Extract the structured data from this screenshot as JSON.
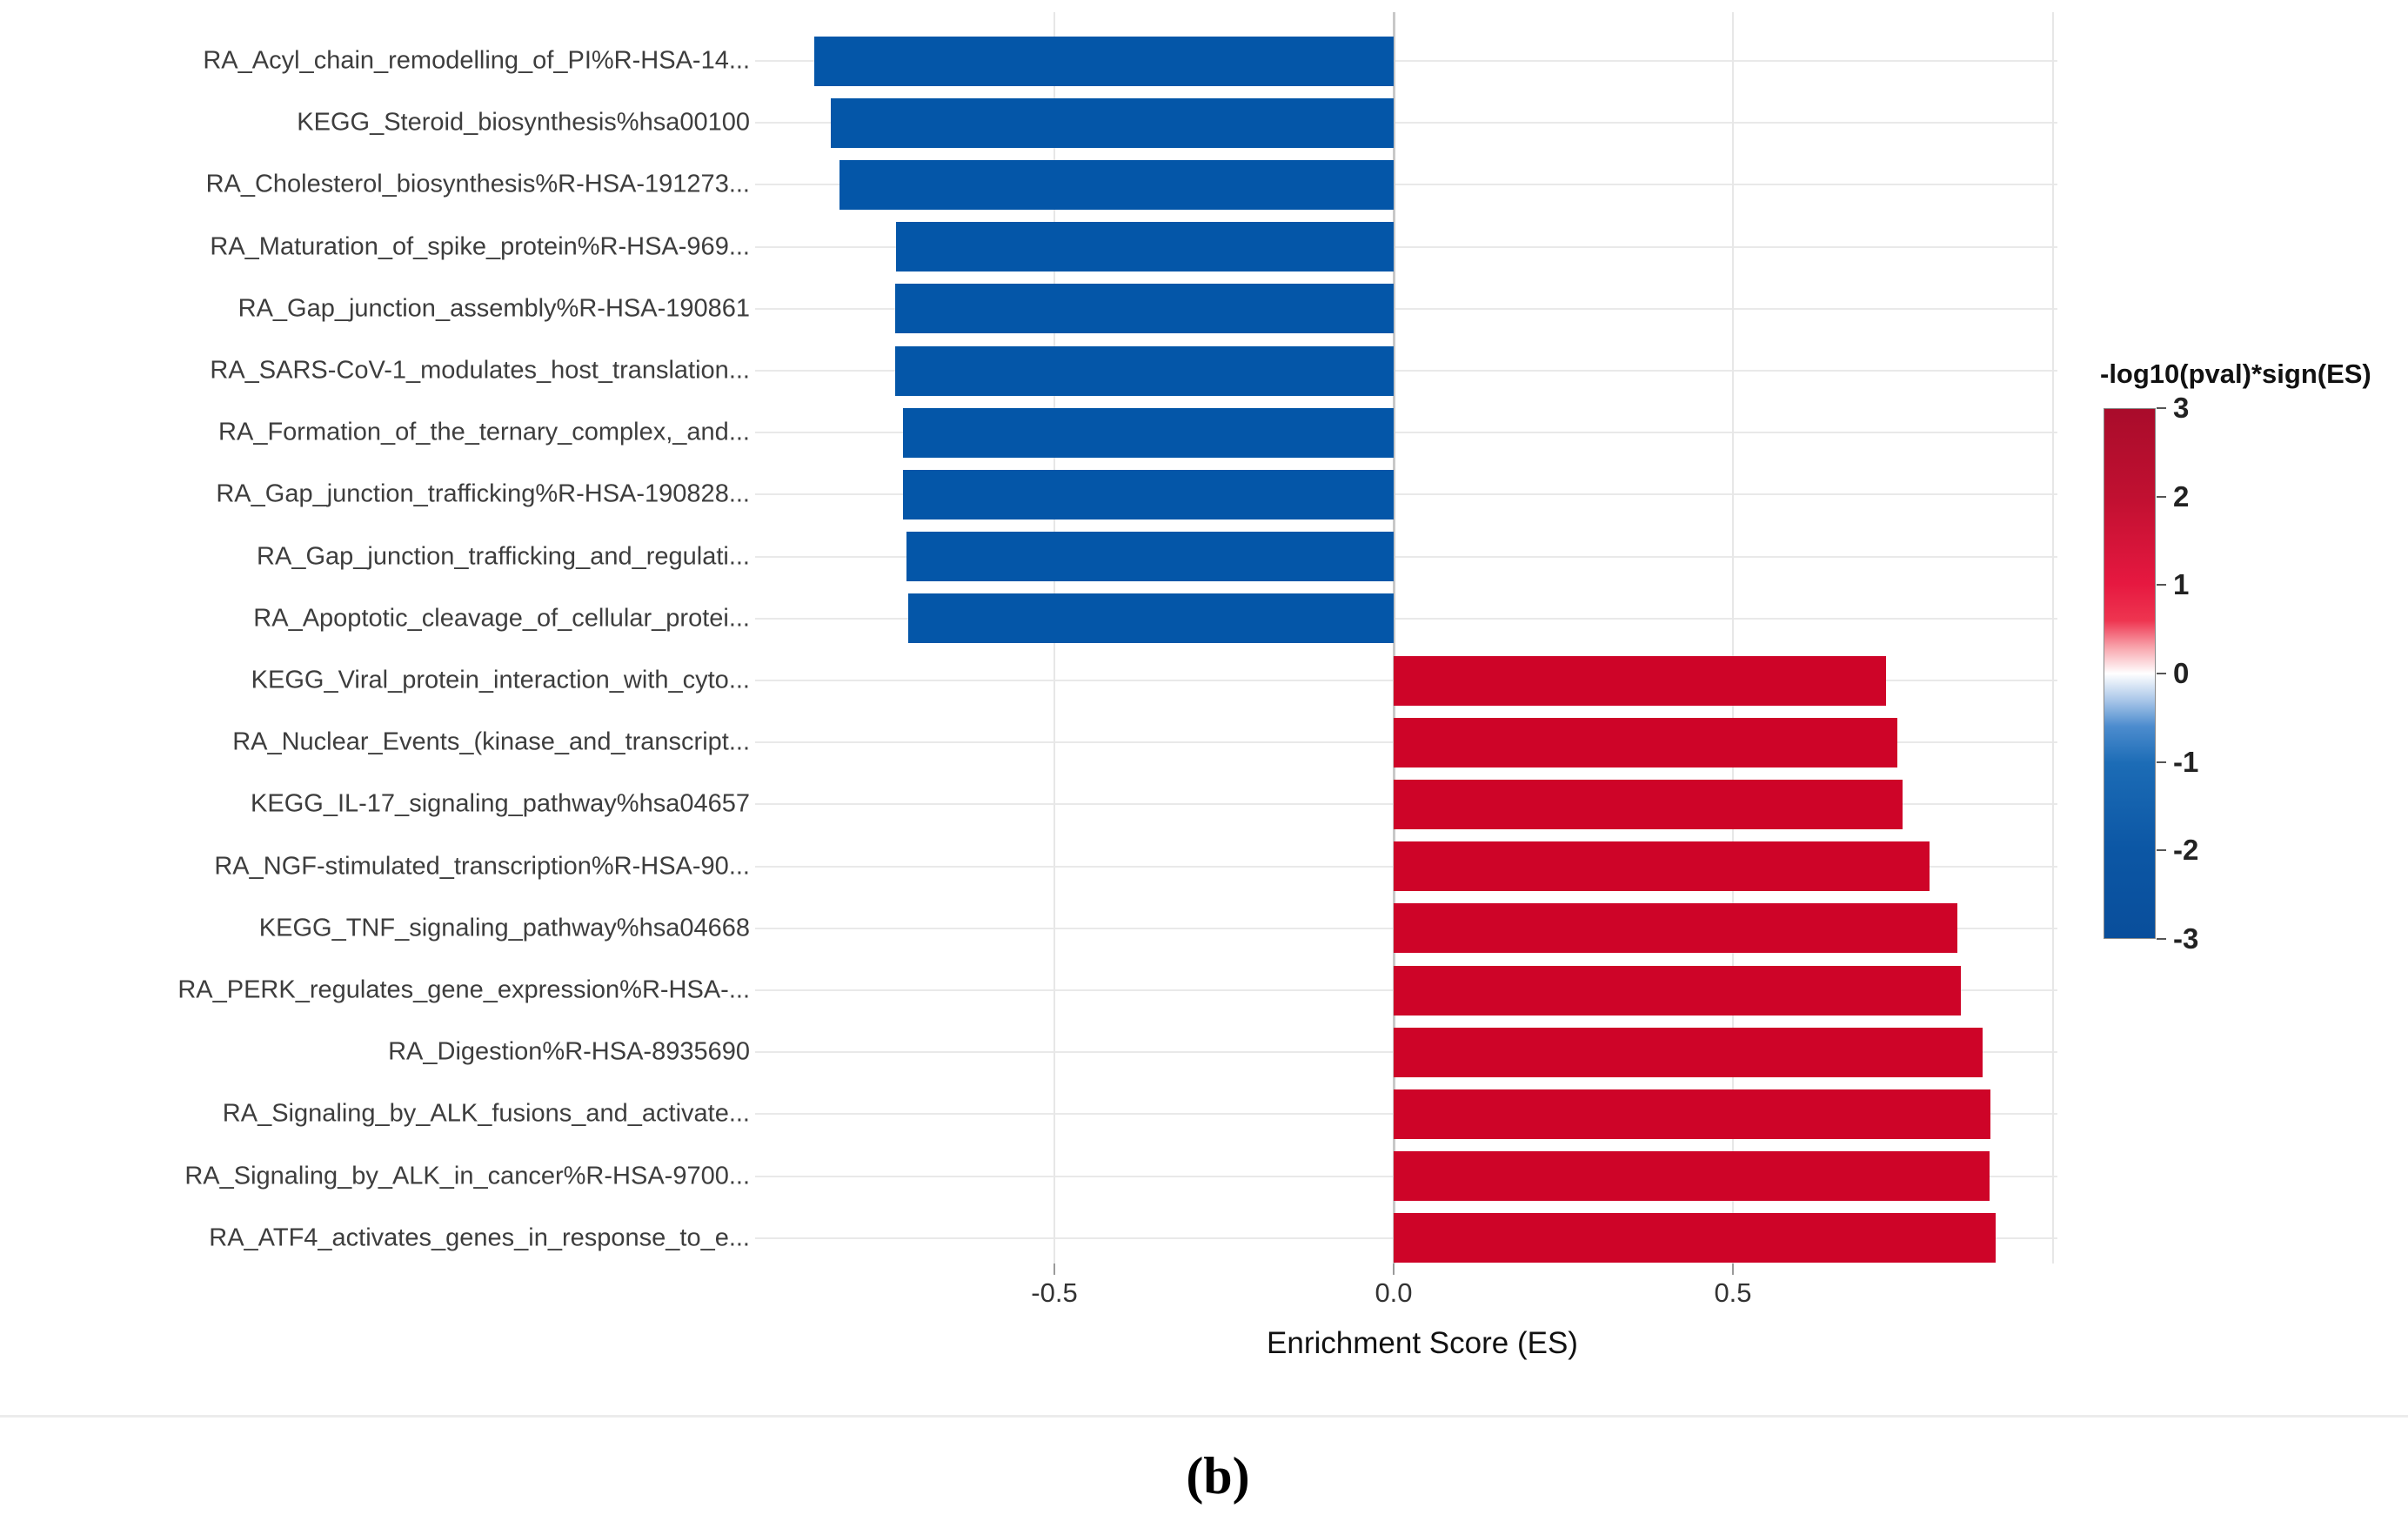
{
  "figure": {
    "caption": "(b)",
    "separator_color": "#ececec"
  },
  "chart_data": {
    "type": "bar",
    "orientation": "horizontal",
    "xlabel": "Enrichment Score (ES)",
    "ylabel": "",
    "xlim": [
      -0.941,
      0.978
    ],
    "x_tick_values": [
      -0.5,
      0.0,
      0.5
    ],
    "x_tick_labels": [
      "-0.5",
      "0.0",
      "0.5"
    ],
    "grid": true,
    "categories": [
      "RA_Acyl_chain_remodelling_of_PI%R-HSA-14...",
      "KEGG_Steroid_biosynthesis%hsa00100",
      "RA_Cholesterol_biosynthesis%R-HSA-191273...",
      "RA_Maturation_of_spike_protein%R-HSA-969...",
      "RA_Gap_junction_assembly%R-HSA-190861",
      "RA_SARS-CoV-1_modulates_host_translation...",
      "RA_Formation_of_the_ternary_complex,_and...",
      "RA_Gap_junction_trafficking%R-HSA-190828...",
      "RA_Gap_junction_trafficking_and_regulati...",
      "RA_Apoptotic_cleavage_of_cellular_protei...",
      "KEGG_Viral_protein_interaction_with_cyto...",
      "RA_Nuclear_Events_(kinase_and_transcript...",
      "KEGG_IL-17_signaling_pathway%hsa04657",
      "RA_NGF-stimulated_transcription%R-HSA-90...",
      "KEGG_TNF_signaling_pathway%hsa04668",
      "RA_PERK_regulates_gene_expression%R-HSA-...",
      "RA_Digestion%R-HSA-8935690",
      "RA_Signaling_by_ALK_fusions_and_activate...",
      "RA_Signaling_by_ALK_in_cancer%R-HSA-9700...",
      "RA_ATF4_activates_genes_in_response_to_e..."
    ],
    "values": [
      -0.854,
      -0.83,
      -0.817,
      -0.733,
      -0.734,
      -0.734,
      -0.723,
      -0.723,
      -0.718,
      -0.715,
      0.726,
      0.742,
      0.75,
      0.79,
      0.831,
      0.836,
      0.868,
      0.88,
      0.878,
      0.887
    ],
    "bar_colors": {
      "negative": "#0456a8",
      "positive": "#ce0428"
    },
    "zeroline_color": "#c8c8c8",
    "gridline_color": "#e9e9e9",
    "colorbar": {
      "title": "-log10(pval)*sign(ES)",
      "min": -3,
      "max": 3,
      "tick_values": [
        3,
        2,
        1,
        0,
        -1,
        -2,
        -3
      ],
      "tick_labels": [
        "3",
        "2",
        "1",
        "0",
        "-1",
        "-2",
        "-3"
      ],
      "gradient": [
        {
          "pos": 0,
          "color": "#a90c2b"
        },
        {
          "pos": 17,
          "color": "#c11031"
        },
        {
          "pos": 33,
          "color": "#e61840"
        },
        {
          "pos": 40,
          "color": "#ee3550"
        },
        {
          "pos": 45,
          "color": "#f8a3ab"
        },
        {
          "pos": 50,
          "color": "#ffffff"
        },
        {
          "pos": 55,
          "color": "#aac7e9"
        },
        {
          "pos": 60,
          "color": "#4c8cce"
        },
        {
          "pos": 67,
          "color": "#1c6cb6"
        },
        {
          "pos": 83,
          "color": "#0c57a5"
        },
        {
          "pos": 100,
          "color": "#094e9b"
        }
      ]
    }
  }
}
